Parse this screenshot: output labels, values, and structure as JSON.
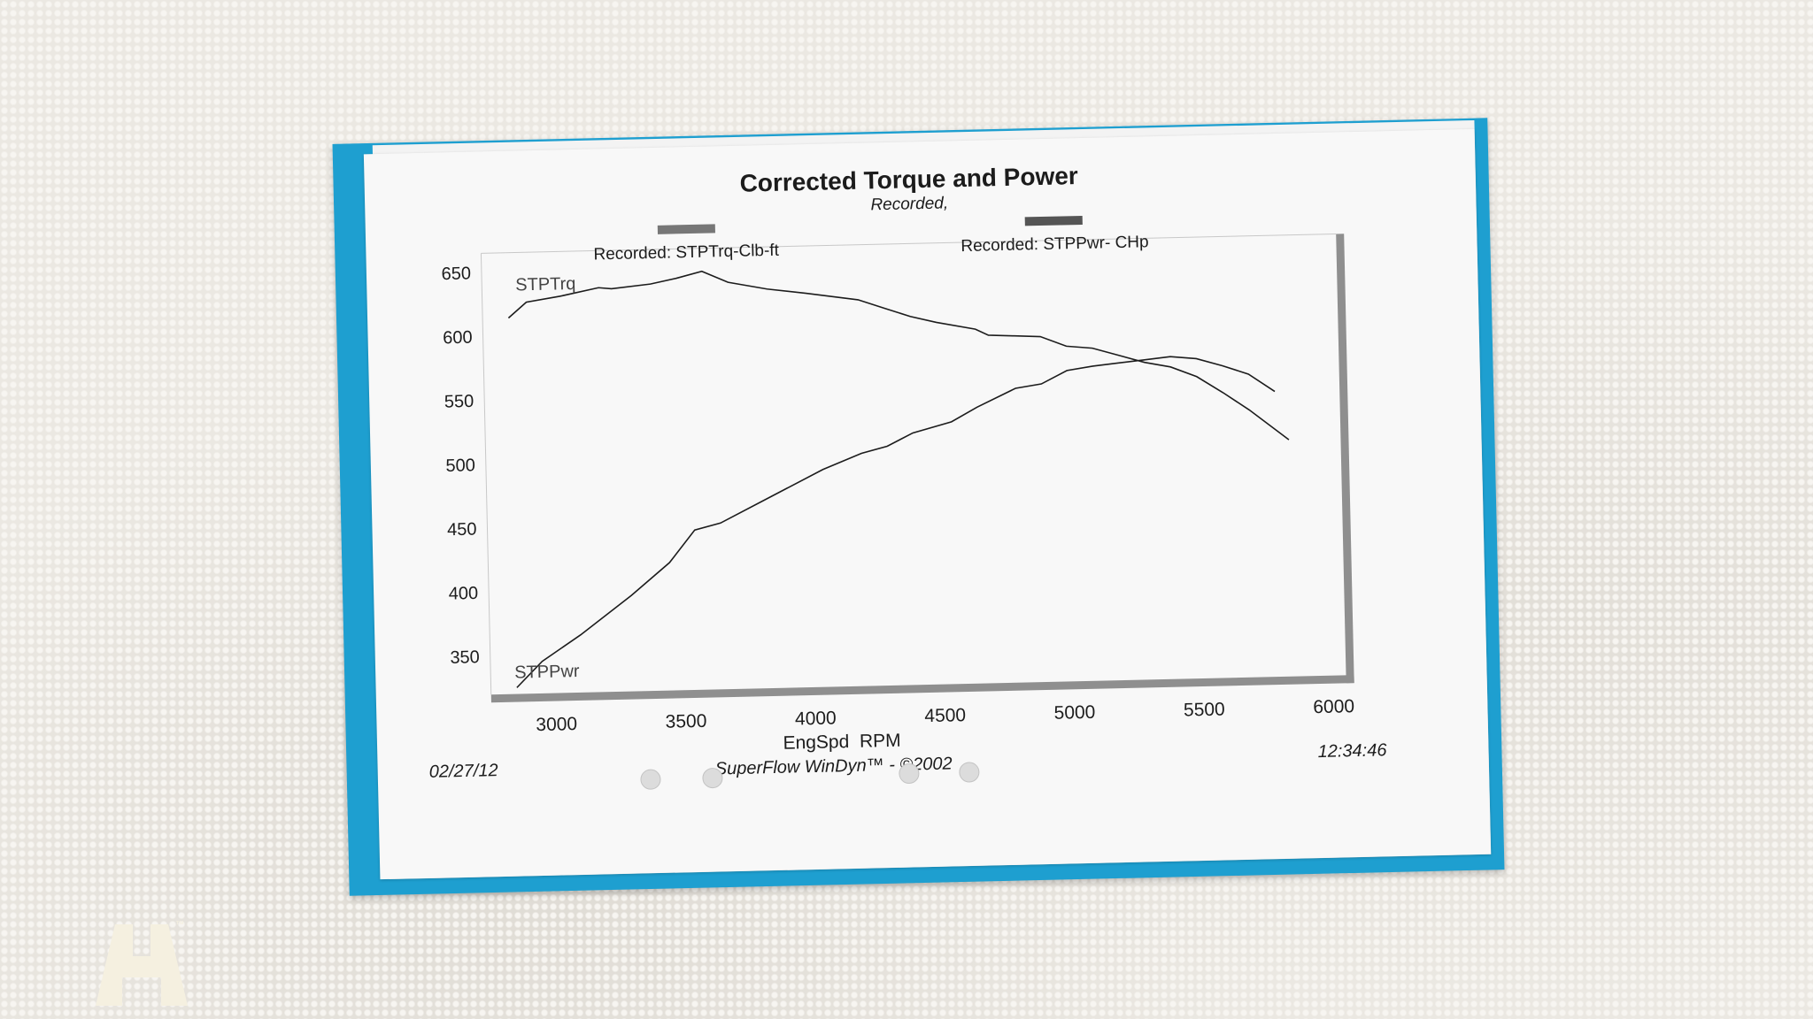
{
  "chart_data": {
    "type": "line",
    "title": "Corrected Torque and Power",
    "subtitle": "Recorded,",
    "xlabel": "EngSpd  RPM",
    "x_ticks": [
      3000,
      3500,
      4000,
      4500,
      5000,
      5500,
      6000
    ],
    "y_ticks": [
      650,
      600,
      550,
      500,
      450,
      400,
      350
    ],
    "xlim": [
      2750,
      6050
    ],
    "ylim": [
      320,
      665
    ],
    "legend": [
      {
        "label": "Recorded: STPTrq-Clb-ft",
        "color": "#777777"
      },
      {
        "label": "Recorded: STPPwr- CHp",
        "color": "#555555"
      }
    ],
    "grid": false,
    "series": [
      {
        "name": "STPTrq",
        "x": [
          2850,
          2920,
          3050,
          3200,
          3250,
          3400,
          3500,
          3600,
          3700,
          3850,
          4000,
          4200,
          4300,
          4400,
          4500,
          4650,
          4700,
          4800,
          4900,
          5000,
          5100,
          5200,
          5300,
          5400,
          5500,
          5600,
          5700,
          5850
        ],
        "y": [
          614,
          626,
          630,
          636,
          635,
          638,
          642,
          647,
          638,
          632,
          628,
          622,
          615,
          608,
          603,
          597,
          592,
          591,
          590,
          582,
          580,
          574,
          568,
          564,
          556,
          543,
          529,
          505
        ]
      },
      {
        "name": "STPPwr",
        "x": [
          2850,
          2950,
          3100,
          3300,
          3450,
          3550,
          3650,
          3850,
          4050,
          4200,
          4300,
          4400,
          4550,
          4650,
          4800,
          4900,
          5000,
          5100,
          5200,
          5300,
          5400,
          5500,
          5600,
          5700,
          5800
        ],
        "y": [
          325,
          345,
          365,
          395,
          420,
          445,
          450,
          470,
          490,
          502,
          507,
          517,
          525,
          536,
          550,
          553,
          563,
          566,
          568,
          570,
          572,
          570,
          564,
          557,
          543
        ]
      }
    ],
    "series_labels": [
      "STPTrq",
      "STPPwr"
    ]
  },
  "footer": {
    "date": "02/27/12",
    "software": "SuperFlow WinDyn™ - ©2002",
    "time": "12:34:46"
  },
  "watermark": {
    "text": "H",
    "tm": "™"
  },
  "colors": {
    "folder": "#1e9fd0",
    "paper": "#f8f8f8",
    "ink": "#1c1c1c",
    "logo": "#f5f0e0"
  }
}
